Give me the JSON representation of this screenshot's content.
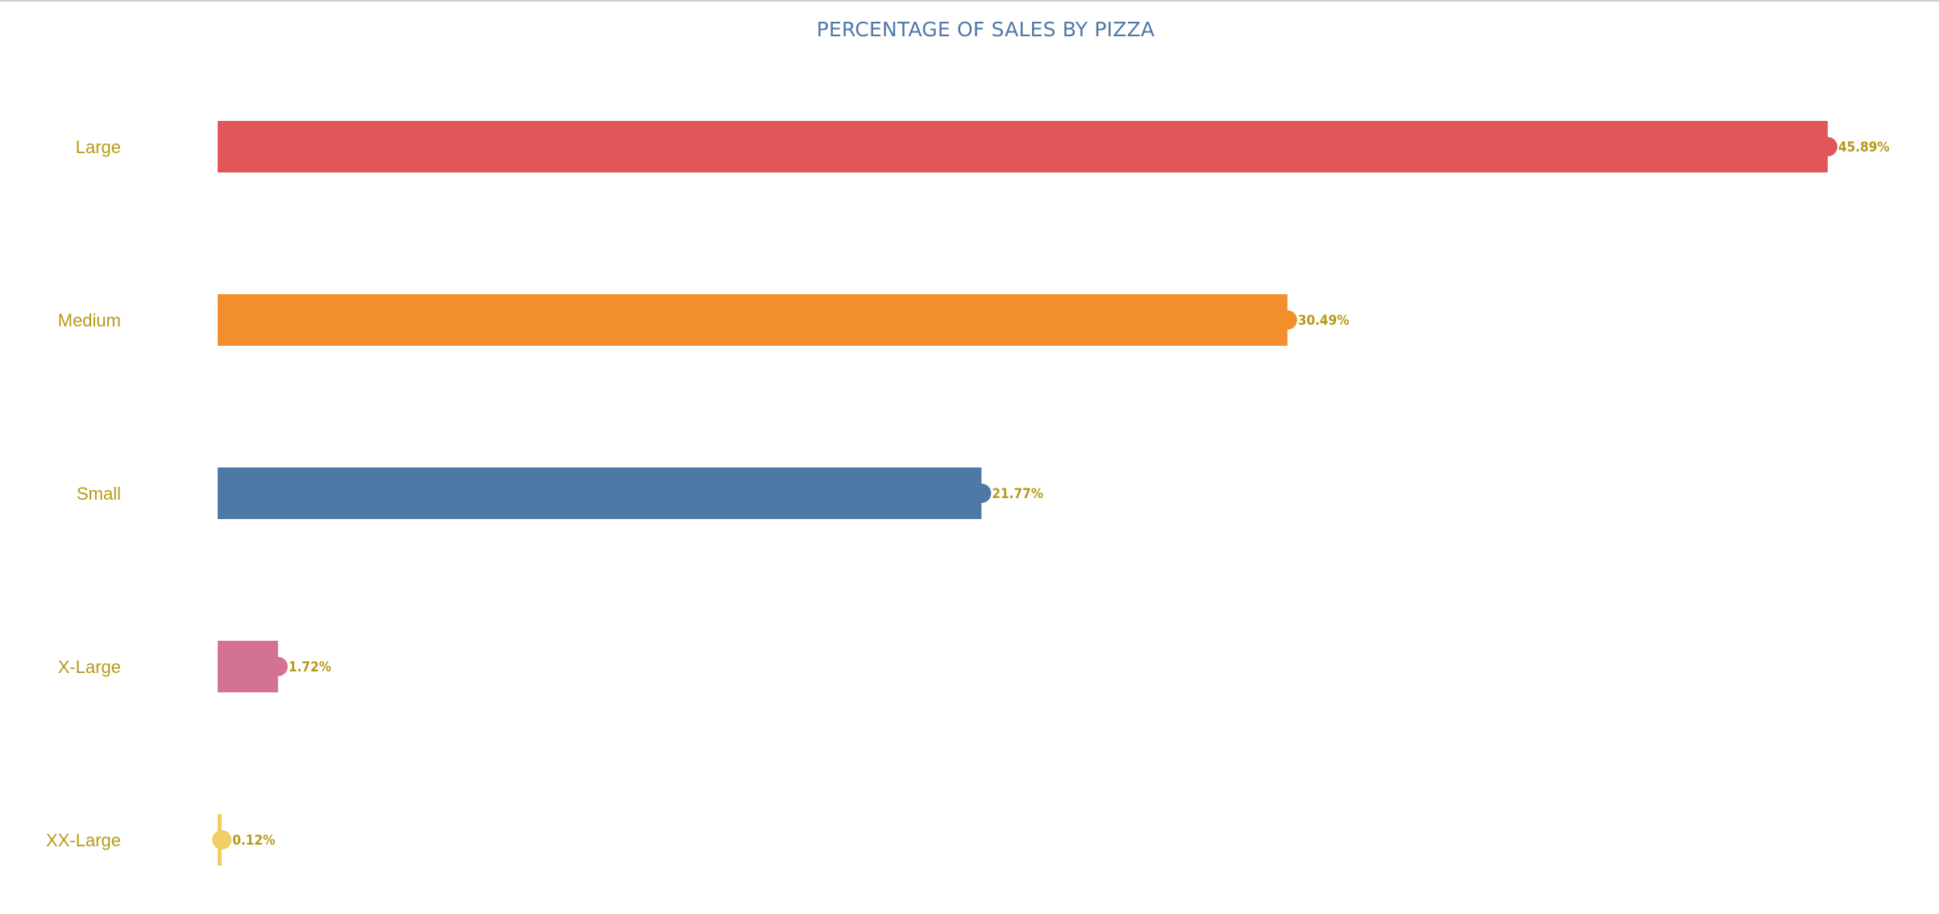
{
  "chart_data": {
    "type": "bar",
    "orientation": "horizontal",
    "title": "PERCENTAGE OF SALES BY PIZZA",
    "xlabel": "",
    "ylabel": "",
    "categories": [
      "Large",
      "Medium",
      "Small",
      "X-Large",
      "XX-Large"
    ],
    "values": [
      45.89,
      30.49,
      21.77,
      1.72,
      0.12
    ],
    "value_labels": [
      "45.89%",
      "30.49%",
      "21.77%",
      "1.72%",
      "0.12%"
    ],
    "xlim": [
      0,
      46
    ],
    "grid": false,
    "legend": "none",
    "colors": [
      "#e15759",
      "#f28e2b",
      "#4e79a7",
      "#d37295",
      "#f1ce63"
    ],
    "label_color": "#b69a16",
    "title_color": "#4e79a7"
  }
}
